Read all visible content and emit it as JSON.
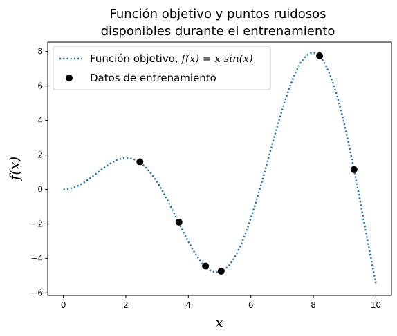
{
  "chart_data": {
    "type": "line",
    "title": [
      "Función objetivo y puntos ruidosos",
      "disponibles durante el entrenamiento"
    ],
    "xlabel": "x",
    "ylabel": "f(x)",
    "xlim": [
      -0.5,
      10.5
    ],
    "ylim": [
      -6.15,
      8.55
    ],
    "xticks": [
      0,
      2,
      4,
      6,
      8,
      10
    ],
    "yticks": [
      -6,
      -4,
      -2,
      0,
      2,
      4,
      6,
      8
    ],
    "grid": false,
    "legend_position": "top-left",
    "series": [
      {
        "name": "Función objetivo, f(x) = x sin(x)",
        "kind": "line",
        "style": "dotted",
        "color": "#1f77b4",
        "function": "x*sin(x)",
        "domain": [
          0,
          10
        ]
      },
      {
        "name": "Datos de entrenamiento",
        "kind": "scatter",
        "color": "#000000",
        "points": [
          {
            "x": 2.45,
            "y": 1.6
          },
          {
            "x": 3.7,
            "y": -1.9
          },
          {
            "x": 4.55,
            "y": -4.45
          },
          {
            "x": 5.05,
            "y": -4.75
          },
          {
            "x": 8.2,
            "y": 7.75
          },
          {
            "x": 9.3,
            "y": 1.15
          }
        ]
      }
    ],
    "legend": {
      "line_label_prefix": "Función objetivo, ",
      "line_label_math": "f(x) = x sin(x)",
      "scatter_label": "Datos de entrenamiento"
    }
  }
}
